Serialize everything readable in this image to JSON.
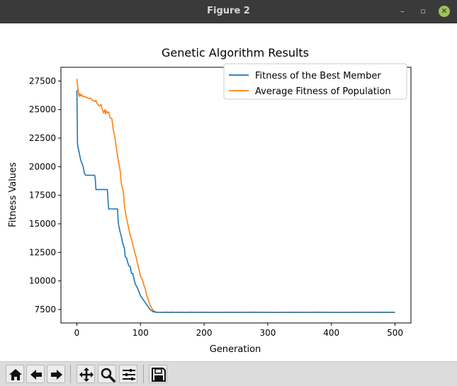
{
  "window": {
    "title": "Figure 2"
  },
  "titlebar_buttons": {
    "minimize": "–",
    "restore": "▫",
    "close": "✕"
  },
  "toolbar": {
    "items": [
      {
        "icon": "home-icon"
      },
      {
        "icon": "back-arrow-icon"
      },
      {
        "icon": "forward-arrow-icon"
      },
      {
        "icon": "pan-icon"
      },
      {
        "icon": "zoom-icon"
      },
      {
        "icon": "configure-subplots-icon"
      },
      {
        "icon": "save-icon"
      }
    ]
  },
  "chart_data": {
    "type": "line",
    "title": "Genetic Algorithm Results",
    "xlabel": "Generation",
    "ylabel": "Fitness Values",
    "xlim": [
      -25,
      525
    ],
    "ylim": [
      6320,
      28700
    ],
    "xticks": [
      0,
      100,
      200,
      300,
      400,
      500
    ],
    "yticks": [
      7500,
      10000,
      12500,
      15000,
      17500,
      20000,
      22500,
      25000,
      27500
    ],
    "legend_position": "upper right",
    "series": [
      {
        "name": "Fitness of the Best Member",
        "color": "#1f77b4",
        "x": [
          0,
          1,
          2,
          3,
          4,
          5,
          6,
          8,
          10,
          12,
          14,
          15,
          20,
          25,
          28,
          29,
          30,
          35,
          40,
          48,
          49,
          50,
          55,
          60,
          64,
          65,
          66,
          68,
          70,
          72,
          74,
          75,
          76,
          78,
          80,
          82,
          84,
          85,
          86,
          88,
          90,
          92,
          95,
          98,
          100,
          105,
          110,
          115,
          120,
          125,
          130,
          200,
          300,
          400,
          500
        ],
        "values": [
          26700,
          22000,
          21600,
          21500,
          21100,
          20900,
          20600,
          20300,
          20000,
          19400,
          19250,
          19250,
          19250,
          19250,
          19250,
          18900,
          18000,
          18000,
          18000,
          18000,
          17000,
          16300,
          16300,
          16300,
          16300,
          15200,
          14800,
          14300,
          13900,
          13300,
          13000,
          12800,
          12100,
          12050,
          11600,
          11300,
          11250,
          10900,
          10650,
          10650,
          10100,
          9700,
          9400,
          9000,
          8700,
          8300,
          7900,
          7500,
          7300,
          7250,
          7250,
          7250,
          7250,
          7250,
          7250
        ]
      },
      {
        "name": "Average Fitness of Population",
        "color": "#ff7f0e",
        "x": [
          0,
          1,
          2,
          3,
          4,
          5,
          6,
          8,
          10,
          12,
          15,
          18,
          20,
          22,
          25,
          28,
          30,
          32,
          35,
          38,
          40,
          42,
          44,
          45,
          46,
          48,
          50,
          52,
          55,
          57,
          60,
          63,
          65,
          68,
          70,
          73,
          75,
          78,
          80,
          83,
          85,
          88,
          90,
          93,
          95,
          98,
          100,
          103,
          105,
          108,
          110,
          113,
          115,
          118,
          120,
          123,
          125,
          130,
          135,
          140,
          145,
          150,
          155,
          160,
          170,
          180,
          190,
          200,
          220,
          240,
          260,
          280,
          300,
          320,
          340,
          360,
          380,
          400,
          420,
          440,
          460,
          480,
          500
        ],
        "values": [
          27700,
          27200,
          26700,
          26300,
          26150,
          26400,
          26200,
          26300,
          26100,
          26150,
          26050,
          26000,
          25950,
          26000,
          25800,
          25700,
          25800,
          25500,
          25300,
          25450,
          25000,
          24700,
          25000,
          24600,
          24900,
          24700,
          24800,
          24300,
          24200,
          23300,
          22500,
          21300,
          20600,
          19700,
          18500,
          17800,
          16500,
          15500,
          15000,
          14200,
          13800,
          13200,
          12700,
          12100,
          11600,
          10900,
          10400,
          10100,
          9700,
          9200,
          8700,
          8250,
          7850,
          7600,
          7420,
          7320,
          7270,
          7250,
          7240,
          7270,
          7230,
          7270,
          7250,
          7260,
          7240,
          7270,
          7250,
          7260,
          7240,
          7260,
          7250,
          7270,
          7250,
          7240,
          7260,
          7250,
          7270,
          7250,
          7240,
          7260,
          7250,
          7260,
          7250
        ]
      }
    ]
  }
}
